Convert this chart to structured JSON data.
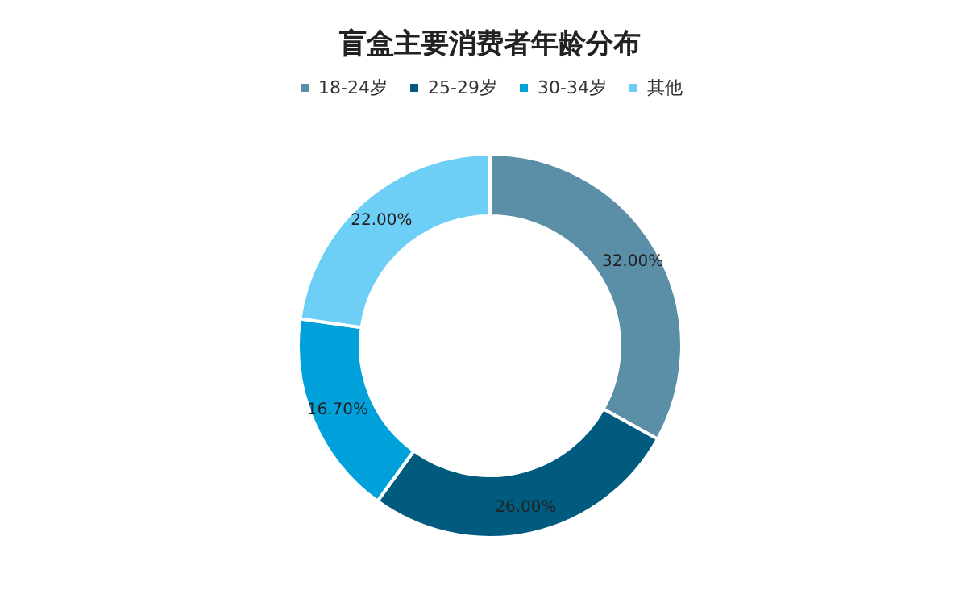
{
  "chart_data": {
    "type": "donut",
    "title": "盲盒主要消费者年龄分布",
    "categories": [
      "18-24岁",
      "25-29岁",
      "30-34岁",
      "其他"
    ],
    "values": [
      32,
      26,
      16.7,
      22
    ],
    "value_labels": [
      "32.00%",
      "26.00%",
      "16.70%",
      "22.00%"
    ],
    "colors": [
      "#5b8fa8",
      "#005b7f",
      "#00a0da",
      "#6dcff6"
    ],
    "legend": "top"
  }
}
